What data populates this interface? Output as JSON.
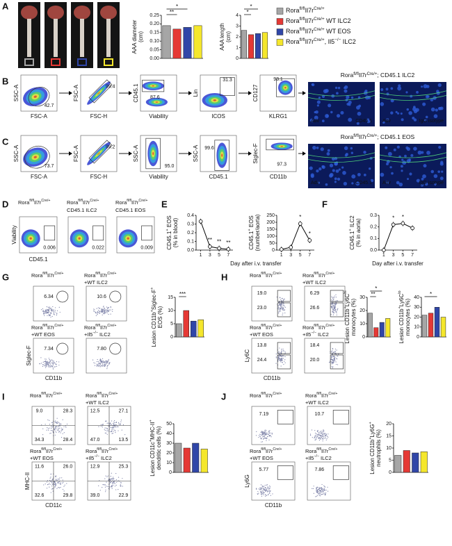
{
  "legend": {
    "entries": [
      {
        "label": [
          "Rora",
          "fl/fl",
          "Il7r",
          "Cre/+"
        ],
        "color": "#a6a6a6"
      },
      {
        "label": [
          "Rora",
          "fl/fl",
          "Il7r",
          "Cre/+",
          " WT ILC2"
        ],
        "color": "#e53935"
      },
      {
        "label": [
          "Rora",
          "fl/fl",
          "Il7r",
          "Cre/+",
          " WT EOS"
        ],
        "color": "#3046a8"
      },
      {
        "label": [
          "Rora",
          "fl/fl",
          "Il7r",
          "Cre/+",
          ", Il5",
          "−/−",
          " ILC2"
        ],
        "color": "#f5e72c"
      }
    ]
  },
  "genotype": [
    "Rora",
    "fl/fl",
    "Il7r",
    "Cre/+"
  ],
  "additions": [
    [
      "+WT ILC2"
    ],
    [
      "+WT EOS"
    ],
    [
      "+Il5",
      "−/−",
      " ILC2"
    ]
  ],
  "panel_a": {
    "letter": "A",
    "diameter": {
      "ylabel": [
        [
          "AAA diameter"
        ],
        [
          "(cm)"
        ]
      ],
      "ylim": [
        0,
        0.25
      ],
      "yticks": [
        {
          "value": 0,
          "label": "0.00"
        },
        {
          "value": 0.05,
          "label": "0.05"
        },
        {
          "value": 0.1,
          "label": "0.10"
        },
        {
          "value": 0.15,
          "label": "0.15"
        },
        {
          "value": 0.2,
          "label": "0.20"
        },
        {
          "value": 0.25,
          "label": "0.25"
        }
      ],
      "values": [
        0.19,
        0.17,
        0.18,
        0.19
      ],
      "stars": [
        {
          "text": "**",
          "from": 0,
          "to": 1
        },
        {
          "text": "*",
          "from": 0,
          "to": 2
        }
      ]
    },
    "length": {
      "ylabel": [
        [
          "AAA length"
        ],
        [
          "(cm)"
        ]
      ],
      "ylim": [
        0,
        4
      ],
      "yticks": [
        0,
        1,
        2,
        3,
        4
      ],
      "values": [
        2.6,
        2.2,
        2.3,
        2.4
      ],
      "stars": [
        {
          "text": "*",
          "from": 0,
          "to": 1
        },
        {
          "text": "*",
          "from": 0,
          "to": 2
        }
      ]
    }
  },
  "panel_b": {
    "letter": "B",
    "title": [
      "Rora",
      "fl/fl",
      "Il7r",
      "Cre/+",
      "; CD45.1 ILC2"
    ],
    "plots": [
      {
        "y": "SSC-A",
        "x": "FSC-A",
        "gates": [
          "42.7"
        ]
      },
      {
        "y": "FSC-A",
        "x": "FSC-H",
        "gates": [
          "99.4"
        ]
      },
      {
        "y": "CD45.1",
        "x": "Viability",
        "gates": [
          "87.6"
        ]
      },
      {
        "y": "Lin",
        "x": "ICOS",
        "gates": [
          "31.3"
        ]
      },
      {
        "y": "CD127",
        "x": "KLRG1",
        "gates": [
          "93.1"
        ]
      }
    ],
    "images": [
      {
        "labels": [
          "Adv",
          "CD45.1"
        ]
      },
      {
        "labels": [
          "Adv",
          "IgG isotype"
        ]
      }
    ]
  },
  "panel_c": {
    "letter": "C",
    "title": [
      "Rora",
      "fl/fl",
      "Il7r",
      "Cre/+",
      "; CD45.1 EOS"
    ],
    "plots": [
      {
        "y": "SSC-A",
        "x": "FSC-A",
        "gates": [
          "73.7"
        ]
      },
      {
        "y": "FSC-A",
        "x": "FSC-H",
        "gates": [
          "99.2"
        ]
      },
      {
        "y": "SSC-A",
        "x": "Viability",
        "gates": [
          "95.0"
        ]
      },
      {
        "y": "SSC-A",
        "x": "CD45.1",
        "gates": [
          "99.6"
        ]
      },
      {
        "y": "Siglec-F",
        "x": "CD11b",
        "gates": [
          "97.3"
        ]
      }
    ],
    "images": [
      {
        "labels": [
          "Adv",
          "CD45.1"
        ]
      },
      {
        "labels": [
          "Adv",
          "IgG isotype"
        ]
      }
    ]
  },
  "panel_d": {
    "letter": "D",
    "ylabel": "Viability",
    "xlabel": "CD45.1",
    "plots": [
      {
        "title2": null,
        "gate": "0.006"
      },
      {
        "title2": "CD45.1 ILC2",
        "gate": "0.022"
      },
      {
        "title2": "CD45.1 EOS",
        "gate": "0.009"
      }
    ]
  },
  "panel_e": {
    "letter": "E",
    "xlabel": "Day after i.v. transfer",
    "charts": [
      {
        "ylabel": [
          [
            "CD45.1",
            "+",
            " EOS"
          ],
          [
            "(% in blood)"
          ]
        ],
        "x": [
          1,
          3,
          5,
          7
        ],
        "xlim": [
          0,
          8
        ],
        "ylim": [
          0,
          0.4
        ],
        "yticks": [
          {
            "value": 0,
            "label": "0.0"
          },
          {
            "value": 0.1,
            "label": "0.1"
          },
          {
            "value": 0.2,
            "label": "0.2"
          },
          {
            "value": 0.3,
            "label": "0.3"
          },
          {
            "value": 0.4,
            "label": "0.4"
          }
        ],
        "values": [
          0.33,
          0.04,
          0.02,
          0.01
        ],
        "stars": [
          null,
          "**",
          "**",
          "**"
        ]
      },
      {
        "ylabel": [
          [
            "CD45.1",
            "+",
            " EOS"
          ],
          [
            "(number/aorta)"
          ]
        ],
        "x": [
          1,
          3,
          5,
          7
        ],
        "xlim": [
          0,
          8
        ],
        "ylim": [
          0,
          250
        ],
        "yticks": [
          0,
          50,
          100,
          150,
          200,
          250
        ],
        "values": [
          5,
          20,
          190,
          70
        ],
        "stars": [
          null,
          null,
          "*",
          "*"
        ]
      }
    ]
  },
  "panel_f": {
    "letter": "F",
    "xlabel": "Day after i.v. transfer",
    "chart": {
      "ylabel": [
        [
          "CD45.1",
          "+",
          " ILC2"
        ],
        [
          "(% in aorta)"
        ]
      ],
      "x": [
        1,
        3,
        5,
        7
      ],
      "xlim": [
        0,
        8
      ],
      "ylim": [
        0,
        0.3
      ],
      "yticks": [
        {
          "value": 0,
          "label": "0.0"
        },
        {
          "value": 0.1,
          "label": "0.1"
        },
        {
          "value": 0.2,
          "label": "0.2"
        },
        {
          "value": 0.3,
          "label": "0.3"
        }
      ],
      "values": [
        0,
        0.22,
        0.23,
        0.19
      ],
      "stars": [
        null,
        "*",
        "*",
        null
      ]
    }
  },
  "panel_g": {
    "letter": "G",
    "ylabel": "Siglec-F",
    "xlabel": "CD11b",
    "gates": [
      [
        "6.34"
      ],
      [
        "10.6"
      ],
      [
        "7.34"
      ],
      [
        "7.80"
      ]
    ],
    "charts": [
      {
        "ylabel": [
          [
            "Lesion CD11b",
            "+",
            "Siglec-F",
            "+"
          ],
          [
            "EOS (%)"
          ]
        ],
        "ylim": [
          0,
          15
        ],
        "yticks": [
          0,
          5,
          10,
          15
        ],
        "values": [
          5,
          10,
          6,
          6.5
        ],
        "stars": [
          {
            "text": "***",
            "from": 0,
            "to": 1
          }
        ]
      }
    ]
  },
  "panel_h": {
    "letter": "H",
    "ylabel": "Ly6C",
    "xlabel": "CD11b",
    "gates": [
      [
        "19.0",
        "23.0"
      ],
      [
        "6.29",
        "26.6"
      ],
      [
        "13.8",
        "24.4"
      ],
      [
        "18.4",
        "20.0"
      ]
    ],
    "charts": [
      {
        "ylabel": [
          [
            "Lesion CD11b",
            "+",
            "Ly6C",
            "hi"
          ],
          [
            "monocytes (%)"
          ]
        ],
        "ylim": [
          0,
          30
        ],
        "yticks": [
          0,
          10,
          20,
          30
        ],
        "values": [
          18,
          7,
          11,
          14
        ],
        "stars": [
          {
            "text": "**",
            "from": 0,
            "to": 1
          },
          {
            "text": "*",
            "from": 0,
            "to": 2
          }
        ]
      },
      {
        "ylabel": [
          [
            "Lesion CD11b",
            "+",
            "Ly6C",
            "lo"
          ],
          [
            "monocytes (%)"
          ]
        ],
        "ylim": [
          0,
          40
        ],
        "yticks": [
          0,
          10,
          20,
          30,
          40
        ],
        "values": [
          22,
          24,
          30,
          20
        ],
        "stars": [
          {
            "text": "*",
            "from": 0,
            "to": 2
          }
        ]
      }
    ]
  },
  "panel_i": {
    "letter": "I",
    "ylabel": "MHC-II",
    "xlabel": "CD11c",
    "gates": [
      [
        "9.0",
        "28.3",
        "34.3",
        "28.4"
      ],
      [
        "12.5",
        "27.1",
        "47.0",
        "13.5"
      ],
      [
        "11.6",
        "26.0",
        "32.6",
        "29.8"
      ],
      [
        "12.9",
        "25.3",
        "39.0",
        "22.9"
      ]
    ],
    "charts": [
      {
        "ylabel": [
          [
            "Lesion CD11c",
            "+",
            "MHC-II",
            "+"
          ],
          [
            "dendritic cells (%)"
          ]
        ],
        "ylim": [
          0,
          50
        ],
        "yticks": [
          0,
          10,
          20,
          30,
          40,
          50
        ],
        "values": [
          30,
          25,
          30,
          24
        ]
      }
    ]
  },
  "panel_j": {
    "letter": "J",
    "ylabel": "Ly6G",
    "xlabel": "CD11b",
    "gates": [
      [
        "7.19"
      ],
      [
        "10.7"
      ],
      [
        "5.77"
      ],
      [
        "7.86"
      ]
    ],
    "charts": [
      {
        "ylabel": [
          [
            "Lesion CD11b",
            "+",
            "Ly6G",
            "+"
          ],
          [
            "neutrophils (%)"
          ]
        ],
        "ylim": [
          0,
          20
        ],
        "yticks": [
          0,
          5,
          10,
          15,
          20
        ],
        "values": [
          7,
          9,
          8,
          8.5
        ]
      }
    ]
  }
}
